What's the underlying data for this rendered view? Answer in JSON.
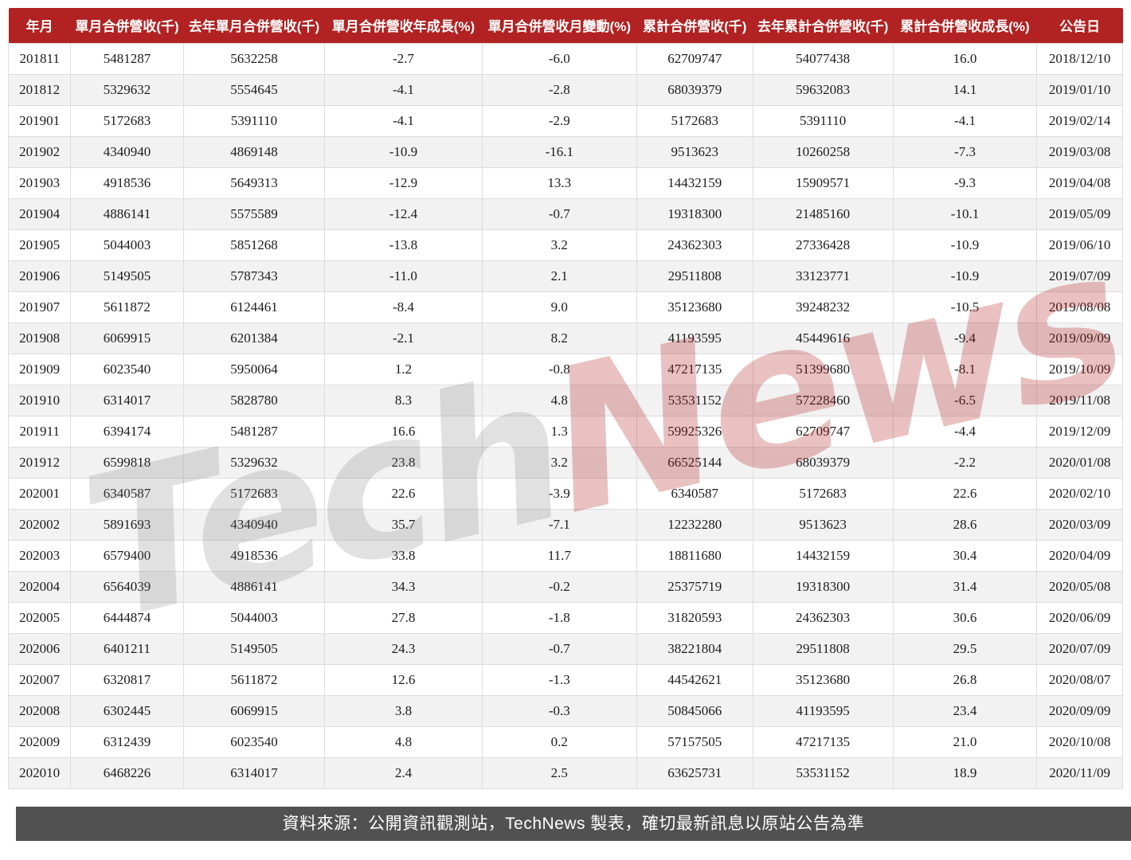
{
  "chart_data": {
    "type": "table",
    "columns": [
      "年月",
      "單月合併營收(千)",
      "去年單月合併營收(千)",
      "單月合併營收年成長(%)",
      "單月合併營收月變動(%)",
      "累計合併營收(千)",
      "去年累計合併營收(千)",
      "累計合併營收成長(%)",
      "公告日"
    ],
    "rows": [
      [
        "201811",
        "5481287",
        "5632258",
        "-2.7",
        "-6.0",
        "62709747",
        "54077438",
        "16.0",
        "2018/12/10"
      ],
      [
        "201812",
        "5329632",
        "5554645",
        "-4.1",
        "-2.8",
        "68039379",
        "59632083",
        "14.1",
        "2019/01/10"
      ],
      [
        "201901",
        "5172683",
        "5391110",
        "-4.1",
        "-2.9",
        "5172683",
        "5391110",
        "-4.1",
        "2019/02/14"
      ],
      [
        "201902",
        "4340940",
        "4869148",
        "-10.9",
        "-16.1",
        "9513623",
        "10260258",
        "-7.3",
        "2019/03/08"
      ],
      [
        "201903",
        "4918536",
        "5649313",
        "-12.9",
        "13.3",
        "14432159",
        "15909571",
        "-9.3",
        "2019/04/08"
      ],
      [
        "201904",
        "4886141",
        "5575589",
        "-12.4",
        "-0.7",
        "19318300",
        "21485160",
        "-10.1",
        "2019/05/09"
      ],
      [
        "201905",
        "5044003",
        "5851268",
        "-13.8",
        "3.2",
        "24362303",
        "27336428",
        "-10.9",
        "2019/06/10"
      ],
      [
        "201906",
        "5149505",
        "5787343",
        "-11.0",
        "2.1",
        "29511808",
        "33123771",
        "-10.9",
        "2019/07/09"
      ],
      [
        "201907",
        "5611872",
        "6124461",
        "-8.4",
        "9.0",
        "35123680",
        "39248232",
        "-10.5",
        "2019/08/08"
      ],
      [
        "201908",
        "6069915",
        "6201384",
        "-2.1",
        "8.2",
        "41193595",
        "45449616",
        "-9.4",
        "2019/09/09"
      ],
      [
        "201909",
        "6023540",
        "5950064",
        "1.2",
        "-0.8",
        "47217135",
        "51399680",
        "-8.1",
        "2019/10/09"
      ],
      [
        "201910",
        "6314017",
        "5828780",
        "8.3",
        "4.8",
        "53531152",
        "57228460",
        "-6.5",
        "2019/11/08"
      ],
      [
        "201911",
        "6394174",
        "5481287",
        "16.6",
        "1.3",
        "59925326",
        "62709747",
        "-4.4",
        "2019/12/09"
      ],
      [
        "201912",
        "6599818",
        "5329632",
        "23.8",
        "3.2",
        "66525144",
        "68039379",
        "-2.2",
        "2020/01/08"
      ],
      [
        "202001",
        "6340587",
        "5172683",
        "22.6",
        "-3.9",
        "6340587",
        "5172683",
        "22.6",
        "2020/02/10"
      ],
      [
        "202002",
        "5891693",
        "4340940",
        "35.7",
        "-7.1",
        "12232280",
        "9513623",
        "28.6",
        "2020/03/09"
      ],
      [
        "202003",
        "6579400",
        "4918536",
        "33.8",
        "11.7",
        "18811680",
        "14432159",
        "30.4",
        "2020/04/09"
      ],
      [
        "202004",
        "6564039",
        "4886141",
        "34.3",
        "-0.2",
        "25375719",
        "19318300",
        "31.4",
        "2020/05/08"
      ],
      [
        "202005",
        "6444874",
        "5044003",
        "27.8",
        "-1.8",
        "31820593",
        "24362303",
        "30.6",
        "2020/06/09"
      ],
      [
        "202006",
        "6401211",
        "5149505",
        "24.3",
        "-0.7",
        "38221804",
        "29511808",
        "29.5",
        "2020/07/09"
      ],
      [
        "202007",
        "6320817",
        "5611872",
        "12.6",
        "-1.3",
        "44542621",
        "35123680",
        "26.8",
        "2020/08/07"
      ],
      [
        "202008",
        "6302445",
        "6069915",
        "3.8",
        "-0.3",
        "50845066",
        "41193595",
        "23.4",
        "2020/09/09"
      ],
      [
        "202009",
        "6312439",
        "6023540",
        "4.8",
        "0.2",
        "57157505",
        "47217135",
        "21.0",
        "2020/10/08"
      ],
      [
        "202010",
        "6468226",
        "6314017",
        "2.4",
        "2.5",
        "63625731",
        "53531152",
        "18.9",
        "2020/11/09"
      ]
    ]
  },
  "watermark": {
    "part_gray": "Tech",
    "part_red": "News"
  },
  "footer": {
    "text": "資料來源：公開資訊觀測站，TechNews 製表，確切最新訊息以原站公告為準"
  },
  "colors": {
    "header_bg": "#b22222",
    "header_text": "#ffffff",
    "row_stripe": "#f2f2f2",
    "cell_border": "#dddddd",
    "footer_bg": "#515151",
    "footer_text": "#ffffff",
    "watermark_gray": "#dcdcdc",
    "watermark_red": "#e8bdbd"
  }
}
